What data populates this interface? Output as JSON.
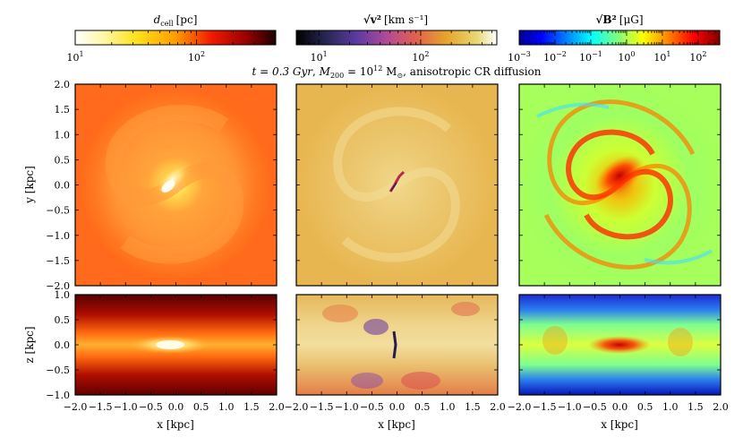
{
  "figure": {
    "caption_time": "t = 0.3 Gyr",
    "caption_mass": "M",
    "caption_mass_sub": "200",
    "caption_mass_value": " = 10",
    "caption_mass_exp": "12",
    "caption_mass_unit": " M",
    "caption_mass_unit_sub": "⊙",
    "caption_tail": ", anisotropic CR diffusion"
  },
  "colorbars": [
    {
      "id": "dcell",
      "symbol": "d",
      "symbol_sub": "cell",
      "unit": "[pc]",
      "colormap": "hot_r",
      "scale": "log",
      "range": [
        10,
        450
      ],
      "major_ticks": [
        {
          "base": "10",
          "exp": "1"
        },
        {
          "base": "10",
          "exp": "2"
        }
      ]
    },
    {
      "id": "vel",
      "symbol": "√v²",
      "unit": "[km s⁻¹]",
      "colormap": "CMRmap",
      "scale": "log",
      "range": [
        6,
        560
      ],
      "major_ticks": [
        {
          "base": "10",
          "exp": "1"
        },
        {
          "base": "10",
          "exp": "2"
        }
      ]
    },
    {
      "id": "bfield",
      "symbol": "√B²",
      "unit": "[μG]",
      "colormap": "jet",
      "scale": "log",
      "range": [
        0.001,
        400
      ],
      "major_ticks": [
        {
          "base": "10",
          "exp": "−3"
        },
        {
          "base": "10",
          "exp": "−2"
        },
        {
          "base": "10",
          "exp": "−1"
        },
        {
          "base": "10",
          "exp": "0"
        },
        {
          "base": "10",
          "exp": "1"
        },
        {
          "base": "10",
          "exp": "2"
        }
      ]
    }
  ],
  "axes": {
    "xlabel": "x [kpc]",
    "ylabel_face": "y [kpc]",
    "ylabel_edge": "z [kpc]",
    "x_ticks": [
      "−2.0",
      "−1.5",
      "−1.0",
      "−0.5",
      "0.0",
      "0.5",
      "1.0",
      "1.5",
      "2.0"
    ],
    "y_ticks_face": [
      "2.0",
      "1.5",
      "1.0",
      "0.5",
      "0.0",
      "−0.5",
      "−1.0",
      "−1.5",
      "−2.0"
    ],
    "y_ticks_edge": [
      "1.0",
      "0.5",
      "0.0",
      "−0.5",
      "−1.0"
    ]
  },
  "chart_data": {
    "type": "heatmap",
    "title": "t = 0.3 Gyr, M200 = 10^12 M⊙, anisotropic CR diffusion",
    "xlabel": "x [kpc]",
    "xlim": [
      -2.0,
      2.0
    ],
    "rows": [
      {
        "view": "face-on",
        "ylabel": "y [kpc]",
        "ylim": [
          -2.0,
          2.0
        ]
      },
      {
        "view": "edge-on",
        "ylabel": "z [kpc]",
        "ylim": [
          -1.0,
          1.0
        ]
      }
    ],
    "columns": [
      {
        "quantity": "d_cell",
        "unit": "pc",
        "colorbar_range": [
          10,
          450
        ],
        "scale": "log"
      },
      {
        "quantity": "sqrt(v^2)",
        "unit": "km s^-1",
        "colorbar_range": [
          6,
          560
        ],
        "scale": "log"
      },
      {
        "quantity": "sqrt(B^2)",
        "unit": "μG",
        "colorbar_range": [
          0.001,
          400
        ],
        "scale": "log"
      }
    ]
  }
}
